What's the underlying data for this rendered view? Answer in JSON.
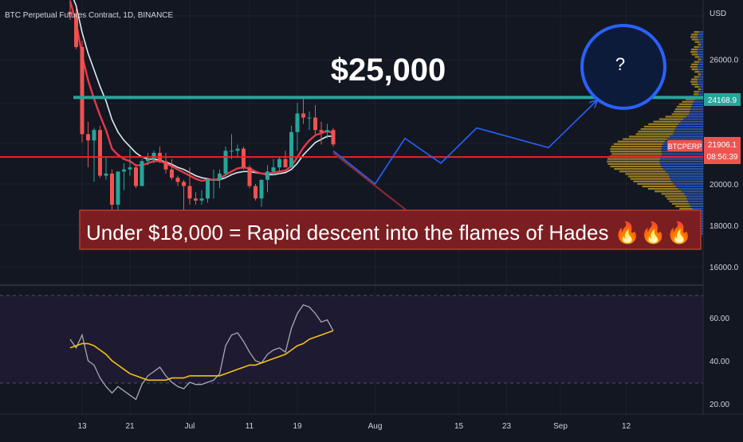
{
  "header": {
    "title": "BTC Perpetual Futures Contract, 1D, BINANCE"
  },
  "annotations": {
    "price_target": "$25,000",
    "question_mark": "?",
    "warning": "Under $18,000 = Rapid descent into the flames of Hades 🔥🔥🔥"
  },
  "price_tags": {
    "resistance_value": "24168.9",
    "symbol": "BTCPERP",
    "last_price": "21906.1",
    "countdown": "08:56:39"
  },
  "colors": {
    "background": "#131722",
    "up_candle": "#26a69a",
    "down_candle": "#ef5350",
    "resistance_line": "#26a69a",
    "support_line": "#ef2222",
    "projection": "#2962ff",
    "rsi_line": "#a9a9b4",
    "rsi_ma": "#f5c211",
    "warning_box": "#7a1e22"
  },
  "chart_data": [
    {
      "type": "line",
      "title": "BTC Perpetual Futures Contract, 1D, BINANCE",
      "unit": "USD",
      "y_ticks": [
        "26000.0",
        "24000.0",
        "22000.0",
        "20000.0",
        "18000.0",
        "16000.0"
      ],
      "x_ticks": [
        "13",
        "21",
        "Jul",
        "11",
        "19",
        "Aug",
        "15",
        "23",
        "Sep",
        "12"
      ],
      "candles": [
        {
          "d": "Jun 11",
          "o": 28300,
          "h": 29000,
          "l": 27900,
          "c": 28200
        },
        {
          "d": "Jun 12",
          "o": 28200,
          "h": 28500,
          "l": 26500,
          "c": 26600
        },
        {
          "d": "Jun 13",
          "o": 26600,
          "h": 26900,
          "l": 22000,
          "c": 22400
        },
        {
          "d": "Jun 14",
          "o": 22400,
          "h": 23000,
          "l": 20800,
          "c": 22100
        },
        {
          "d": "Jun 15",
          "o": 22100,
          "h": 22700,
          "l": 20100,
          "c": 22600
        },
        {
          "d": "Jun 16",
          "o": 22600,
          "h": 22800,
          "l": 20300,
          "c": 20400
        },
        {
          "d": "Jun 17",
          "o": 20400,
          "h": 21300,
          "l": 20200,
          "c": 20500
        },
        {
          "d": "Jun 18",
          "o": 20500,
          "h": 20700,
          "l": 17600,
          "c": 19000
        },
        {
          "d": "Jun 19",
          "o": 19000,
          "h": 20500,
          "l": 17900,
          "c": 20600
        },
        {
          "d": "Jun 20",
          "o": 20600,
          "h": 21000,
          "l": 19700,
          "c": 20700
        },
        {
          "d": "Jun 21",
          "o": 20700,
          "h": 21700,
          "l": 20400,
          "c": 20800
        },
        {
          "d": "Jun 22",
          "o": 20800,
          "h": 20900,
          "l": 19800,
          "c": 19900
        },
        {
          "d": "Jun 23",
          "o": 19900,
          "h": 21200,
          "l": 19900,
          "c": 21100
        },
        {
          "d": "Jun 24",
          "o": 21100,
          "h": 21500,
          "l": 20900,
          "c": 21200
        },
        {
          "d": "Jun 25",
          "o": 21200,
          "h": 21600,
          "l": 21000,
          "c": 21500
        },
        {
          "d": "Jun 26",
          "o": 21500,
          "h": 21800,
          "l": 21000,
          "c": 21100
        },
        {
          "d": "Jun 27",
          "o": 21100,
          "h": 21500,
          "l": 20500,
          "c": 20700
        },
        {
          "d": "Jun 28",
          "o": 20700,
          "h": 21200,
          "l": 20200,
          "c": 20300
        },
        {
          "d": "Jun 29",
          "o": 20300,
          "h": 20400,
          "l": 19900,
          "c": 20100
        },
        {
          "d": "Jun 30",
          "o": 20100,
          "h": 20200,
          "l": 18700,
          "c": 19900
        },
        {
          "d": "Jul 1",
          "o": 19900,
          "h": 20800,
          "l": 19000,
          "c": 19300
        },
        {
          "d": "Jul 2",
          "o": 19300,
          "h": 19600,
          "l": 19000,
          "c": 19200
        },
        {
          "d": "Jul 3",
          "o": 19200,
          "h": 19700,
          "l": 19000,
          "c": 19300
        },
        {
          "d": "Jul 4",
          "o": 19300,
          "h": 20300,
          "l": 19100,
          "c": 20200
        },
        {
          "d": "Jul 5",
          "o": 20200,
          "h": 20700,
          "l": 19300,
          "c": 20200
        },
        {
          "d": "Jul 6",
          "o": 20200,
          "h": 20700,
          "l": 19800,
          "c": 20500
        },
        {
          "d": "Jul 7",
          "o": 20500,
          "h": 21800,
          "l": 20300,
          "c": 21600
        },
        {
          "d": "Jul 8",
          "o": 21600,
          "h": 22400,
          "l": 21200,
          "c": 21600
        },
        {
          "d": "Jul 9",
          "o": 21600,
          "h": 21900,
          "l": 21300,
          "c": 21700
        },
        {
          "d": "Jul 10",
          "o": 21700,
          "h": 21800,
          "l": 20700,
          "c": 20800
        },
        {
          "d": "Jul 11",
          "o": 20800,
          "h": 20900,
          "l": 19800,
          "c": 19900
        },
        {
          "d": "Jul 12",
          "o": 19900,
          "h": 20000,
          "l": 19200,
          "c": 19300
        },
        {
          "d": "Jul 13",
          "o": 19300,
          "h": 20200,
          "l": 18900,
          "c": 20200
        },
        {
          "d": "Jul 14",
          "o": 20200,
          "h": 20900,
          "l": 19600,
          "c": 20600
        },
        {
          "d": "Jul 15",
          "o": 20600,
          "h": 21200,
          "l": 20400,
          "c": 20800
        },
        {
          "d": "Jul 16",
          "o": 20800,
          "h": 21300,
          "l": 20500,
          "c": 21200
        },
        {
          "d": "Jul 17",
          "o": 21200,
          "h": 21600,
          "l": 20800,
          "c": 20800
        },
        {
          "d": "Jul 18",
          "o": 20800,
          "h": 22800,
          "l": 20800,
          "c": 22500
        },
        {
          "d": "Jul 19",
          "o": 22500,
          "h": 23900,
          "l": 21600,
          "c": 23400
        },
        {
          "d": "Jul 20",
          "o": 23400,
          "h": 24200,
          "l": 22900,
          "c": 23200
        },
        {
          "d": "Jul 21",
          "o": 23200,
          "h": 23500,
          "l": 22600,
          "c": 23200
        },
        {
          "d": "Jul 22",
          "o": 23200,
          "h": 23800,
          "l": 22400,
          "c": 22600
        },
        {
          "d": "Jul 23",
          "o": 22600,
          "h": 23000,
          "l": 21900,
          "c": 22500
        },
        {
          "d": "Jul 24",
          "o": 22500,
          "h": 22900,
          "l": 22200,
          "c": 22600
        },
        {
          "d": "Jul 25",
          "o": 22600,
          "h": 22700,
          "l": 21800,
          "c": 21906
        }
      ],
      "ema_fast": [
        28800,
        27800,
        26200,
        25000,
        24100,
        23300,
        22600,
        21700,
        21400,
        21200,
        21100,
        20900,
        20900,
        21000,
        21100,
        21100,
        21000,
        20850,
        20700,
        20550,
        20400,
        20250,
        20150,
        20200,
        20200,
        20250,
        20450,
        20600,
        20750,
        20800,
        20750,
        20600,
        20500,
        20500,
        20550,
        20600,
        20650,
        20850,
        21300,
        21750,
        22100,
        22350,
        22450,
        22550,
        22450
      ],
      "ema_slow": [
        29300,
        28600,
        27300,
        26300,
        25500,
        24700,
        24000,
        23100,
        22500,
        22100,
        21800,
        21500,
        21300,
        21200,
        21200,
        21150,
        21050,
        20950,
        20800,
        20700,
        20550,
        20400,
        20300,
        20250,
        20200,
        20200,
        20300,
        20450,
        20550,
        20600,
        20600,
        20550,
        20500,
        20450,
        20450,
        20500,
        20550,
        20700,
        21000,
        21400,
        21700,
        22000,
        22150,
        22300,
        22300
      ],
      "resistance_level": 24168.9,
      "support_level": 21300,
      "projection_path": [
        [
          "Jul 25",
          21600
        ],
        [
          "Aug 1",
          20000
        ],
        [
          "Aug 6",
          22200
        ],
        [
          "Aug 12",
          21000
        ],
        [
          "Aug 18",
          22700
        ],
        [
          "Aug 30",
          21750
        ],
        [
          "Sep 7",
          24000
        ]
      ],
      "bearish_arrow": [
        [
          "Jul 25",
          21500
        ],
        [
          "Aug 13",
          17200
        ]
      ],
      "volume_profile": true,
      "ylim": [
        15500,
        27900
      ]
    },
    {
      "type": "line",
      "name": "RSI",
      "y_ticks": [
        "60.00",
        "40.00",
        "20.00"
      ],
      "bands": [
        30,
        70
      ],
      "rsi": [
        50,
        46,
        52,
        40,
        38,
        32,
        28,
        25,
        28,
        26,
        24,
        22,
        29,
        33,
        35,
        37,
        33,
        30,
        28,
        27,
        30,
        29,
        29,
        30,
        31,
        34,
        47,
        52,
        53,
        49,
        44,
        40,
        39,
        43,
        45,
        46,
        44,
        55,
        62,
        66,
        65,
        62,
        58,
        59,
        54
      ],
      "rsi_ma": [
        46,
        47,
        48,
        48,
        47,
        45,
        43,
        40,
        38,
        36,
        34,
        33,
        32,
        31,
        31,
        31,
        31,
        32,
        32,
        32,
        33,
        33,
        33,
        33,
        33,
        33,
        34,
        35,
        36,
        37,
        38,
        38,
        39,
        40,
        41,
        42,
        43,
        45,
        47,
        48,
        50,
        51,
        52,
        53,
        54
      ],
      "ylim": [
        15,
        75
      ]
    }
  ]
}
